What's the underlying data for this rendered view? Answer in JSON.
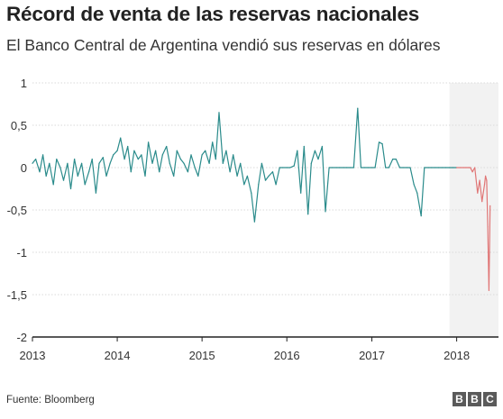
{
  "header": {
    "title": "Récord de venta de las reservas nacionales",
    "subtitle": "El Banco Central de Argentina vendió sus reservas en dólares"
  },
  "footer": {
    "source": "Fuente: Bloomberg",
    "logo_letters": [
      "B",
      "B",
      "C"
    ]
  },
  "colors": {
    "series_main": "#2a8b8b",
    "series_recent": "#e07676",
    "highlight_band": "#f2f2f2",
    "gridline": "#d9d9d9",
    "axis": "#222222"
  },
  "chart_data": {
    "type": "line",
    "title": "Récord de venta de las reservas nacionales",
    "subtitle": "El Banco Central de Argentina vendió sus reservas en dólares",
    "xlabel": "",
    "ylabel": "",
    "xlim": [
      "2013-01-01",
      "2018-06-30"
    ],
    "ylim": [
      -2,
      1
    ],
    "x_ticks": [
      "2013",
      "2014",
      "2015",
      "2016",
      "2017",
      "2018"
    ],
    "y_ticks": [
      "1",
      "0,5",
      "0",
      "-0,5",
      "-1",
      "-1,5",
      "-2"
    ],
    "y_tick_values": [
      1,
      0.5,
      0,
      -0.5,
      -1,
      -1.5,
      -2
    ],
    "grid": true,
    "highlight_range": [
      "2017-12-01",
      "2018-06-30"
    ],
    "series": [
      {
        "color": "#2a8b8b",
        "x": [
          "2013-01-01",
          "2013-01-15",
          "2013-02-01",
          "2013-02-15",
          "2013-03-01",
          "2013-03-15",
          "2013-04-01",
          "2013-04-15",
          "2013-05-01",
          "2013-05-15",
          "2013-06-01",
          "2013-06-15",
          "2013-07-01",
          "2013-07-15",
          "2013-08-01",
          "2013-08-15",
          "2013-09-01",
          "2013-09-15",
          "2013-10-01",
          "2013-10-15",
          "2013-11-01",
          "2013-11-15",
          "2013-12-01",
          "2013-12-15",
          "2014-01-01",
          "2014-01-15",
          "2014-02-01",
          "2014-02-15",
          "2014-03-01",
          "2014-03-15",
          "2014-04-01",
          "2014-04-15",
          "2014-05-01",
          "2014-05-15",
          "2014-06-01",
          "2014-06-15",
          "2014-07-01",
          "2014-07-15",
          "2014-08-01",
          "2014-08-15",
          "2014-09-01",
          "2014-09-15",
          "2014-10-01",
          "2014-10-15",
          "2014-11-01",
          "2014-11-15",
          "2014-12-01",
          "2014-12-15",
          "2015-01-01",
          "2015-01-15",
          "2015-02-01",
          "2015-02-15",
          "2015-03-01",
          "2015-03-15",
          "2015-04-01",
          "2015-04-15",
          "2015-05-01",
          "2015-05-15",
          "2015-06-01",
          "2015-06-15",
          "2015-07-01",
          "2015-07-15",
          "2015-08-01",
          "2015-08-15",
          "2015-09-01",
          "2015-09-15",
          "2015-10-01",
          "2015-10-15",
          "2015-11-01",
          "2015-11-15",
          "2015-12-01",
          "2015-12-15",
          "2016-01-01",
          "2016-01-15",
          "2016-02-01",
          "2016-02-15",
          "2016-03-01",
          "2016-03-15",
          "2016-04-01",
          "2016-04-15",
          "2016-05-01",
          "2016-05-15",
          "2016-06-01",
          "2016-06-15",
          "2016-07-01",
          "2016-07-15",
          "2016-08-01",
          "2016-08-15",
          "2016-09-01",
          "2016-09-15",
          "2016-10-01",
          "2016-10-15",
          "2016-11-01",
          "2016-11-15",
          "2016-12-01",
          "2016-12-15",
          "2017-01-01",
          "2017-01-15",
          "2017-02-01",
          "2017-02-15",
          "2017-03-01",
          "2017-03-15",
          "2017-04-01",
          "2017-04-15",
          "2017-05-01",
          "2017-05-15",
          "2017-06-01",
          "2017-06-15",
          "2017-07-01",
          "2017-07-15",
          "2017-08-01",
          "2017-08-15",
          "2017-09-01",
          "2017-09-15",
          "2017-10-01",
          "2017-10-15",
          "2017-11-01",
          "2017-11-15",
          "2017-12-01",
          "2017-12-15",
          "2018-01-01"
        ],
        "values": [
          0.05,
          0.1,
          -0.05,
          0.15,
          -0.1,
          0.05,
          -0.2,
          0.1,
          0.0,
          -0.15,
          0.05,
          -0.25,
          0.1,
          -0.1,
          0.05,
          -0.2,
          -0.05,
          0.1,
          -0.3,
          0.05,
          0.12,
          -0.1,
          0.05,
          0.15,
          0.2,
          0.35,
          0.1,
          0.25,
          -0.05,
          0.2,
          0.1,
          0.15,
          -0.1,
          0.3,
          0.05,
          0.2,
          -0.05,
          0.15,
          0.25,
          0.05,
          -0.1,
          0.2,
          0.1,
          0.05,
          -0.05,
          0.15,
          0.0,
          -0.1,
          0.15,
          0.2,
          0.05,
          0.3,
          0.1,
          0.65,
          0.05,
          0.2,
          -0.05,
          0.15,
          -0.1,
          0.05,
          -0.2,
          -0.1,
          -0.3,
          -0.64,
          -0.2,
          0.05,
          -0.15,
          -0.1,
          -0.05,
          -0.2,
          0.0,
          0.0,
          0.0,
          0.0,
          0.02,
          0.2,
          -0.3,
          0.25,
          -0.55,
          0.05,
          0.2,
          0.1,
          0.25,
          -0.52,
          0.0,
          0.0,
          0.0,
          0.0,
          0.0,
          0.0,
          0.0,
          0.0,
          0.7,
          0.0,
          0.0,
          0.0,
          0.0,
          0.0,
          0.3,
          0.28,
          0.0,
          0.0,
          0.1,
          0.1,
          0.0,
          0.0,
          0.0,
          0.0,
          -0.2,
          -0.3,
          -0.57,
          0.0,
          0.0,
          0.0,
          0.0,
          0.0,
          0.0,
          0.0,
          0.0,
          0.0,
          0.0
        ]
      },
      {
        "color": "#e07676",
        "x": [
          "2018-01-01",
          "2018-01-15",
          "2018-02-01",
          "2018-02-10",
          "2018-02-20",
          "2018-03-01",
          "2018-03-10",
          "2018-03-20",
          "2018-04-01",
          "2018-04-10",
          "2018-04-20",
          "2018-05-01",
          "2018-05-05",
          "2018-05-10",
          "2018-05-15",
          "2018-05-20",
          "2018-05-25"
        ],
        "values": [
          0.0,
          0.0,
          0.0,
          0.0,
          0.0,
          0.0,
          -0.05,
          0.0,
          -0.3,
          -0.15,
          -0.4,
          -0.2,
          -0.1,
          -0.15,
          -0.7,
          -1.45,
          -0.45
        ]
      }
    ]
  }
}
